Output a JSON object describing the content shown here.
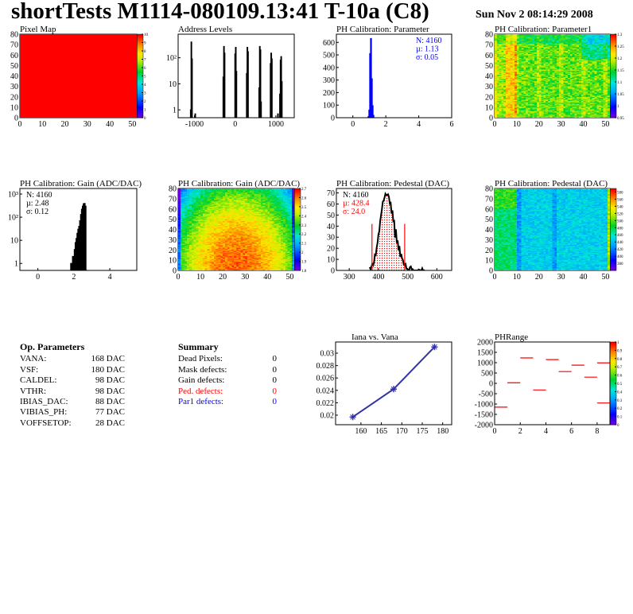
{
  "header": {
    "title": "shortTests M1114-080109.13:41 T-10a (C8)",
    "date": "Sun Nov  2 08:14:29 2008"
  },
  "colors": {
    "hist": "#000000",
    "blue": "#0000ff",
    "red": "#ff0000",
    "graph": "#3333aa"
  },
  "chart_data": [
    {
      "id": "pixel-map",
      "type": "heatmap",
      "title": "Pixel Map",
      "xlim": [
        0,
        52
      ],
      "ylim": [
        0,
        80
      ],
      "xticks": [
        0,
        10,
        20,
        30,
        40,
        50
      ],
      "yticks": [
        0,
        10,
        20,
        30,
        40,
        50,
        60,
        70,
        80
      ],
      "zlim": [
        0,
        10
      ],
      "zticks": [
        0,
        1,
        2,
        3,
        4,
        5,
        6,
        7,
        8,
        9,
        10
      ],
      "pattern": "uniform",
      "zvalue": 10
    },
    {
      "id": "address-levels",
      "type": "bar",
      "title": "Address Levels",
      "xlim": [
        -1400,
        1450
      ],
      "ylog": true,
      "ylim": [
        0.5,
        800
      ],
      "xticks": [
        -1000,
        0,
        1000
      ],
      "yticks": [
        {
          "v": 1,
          "l": "1"
        },
        {
          "v": 10,
          "l": "10"
        },
        {
          "v": 100,
          "l": "10²"
        }
      ],
      "bins": [
        [
          -1090,
          1
        ],
        [
          -1075,
          400
        ],
        [
          -1060,
          90
        ],
        [
          -980,
          0.7
        ],
        [
          -290,
          18
        ],
        [
          -275,
          270
        ],
        [
          -260,
          150
        ],
        [
          0,
          140
        ],
        [
          15,
          250
        ],
        [
          30,
          30
        ],
        [
          285,
          25
        ],
        [
          300,
          250
        ],
        [
          315,
          170
        ],
        [
          590,
          7
        ],
        [
          605,
          270
        ],
        [
          620,
          200
        ],
        [
          635,
          2
        ],
        [
          870,
          60
        ],
        [
          885,
          150
        ],
        [
          900,
          90
        ],
        [
          1050,
          0.7
        ],
        [
          1100,
          4
        ],
        [
          1115,
          80
        ],
        [
          1130,
          110
        ],
        [
          1145,
          12
        ]
      ],
      "binwidth": 15
    },
    {
      "id": "ph-param",
      "type": "bar",
      "title": "PH Calibration: Parameter",
      "xlim": [
        -1,
        6
      ],
      "ylim": [
        0,
        665
      ],
      "xticks": [
        0,
        2,
        4,
        6
      ],
      "yticks": [
        0,
        100,
        200,
        300,
        400,
        500,
        600
      ],
      "bins": [
        [
          0.95,
          8
        ],
        [
          1.0,
          60
        ],
        [
          1.05,
          510
        ],
        [
          1.1,
          630
        ],
        [
          1.15,
          310
        ],
        [
          1.2,
          95
        ],
        [
          1.25,
          18
        ]
      ],
      "binwidth": 0.05,
      "stats": [
        "N: 4160",
        "µ: 1.13",
        "σ: 0.05"
      ],
      "stats_color": "blue"
    },
    {
      "id": "ph-param1",
      "type": "heatmap",
      "title": "PH Calibration: Parameter1",
      "xlim": [
        0,
        52
      ],
      "ylim": [
        0,
        80
      ],
      "xticks": [
        0,
        10,
        20,
        30,
        40,
        50
      ],
      "yticks": [
        0,
        10,
        20,
        30,
        40,
        50,
        60,
        70,
        80
      ],
      "zlim": [
        0.95,
        1.3
      ],
      "zticks": [
        0.95,
        1,
        1.05,
        1.1,
        1.15,
        1.2,
        1.25,
        1.3
      ],
      "pattern": "param1"
    },
    {
      "id": "gain-hist",
      "type": "bar",
      "title": "PH Calibration: Gain (ADC/DAC)",
      "xlim": [
        -1,
        5.5
      ],
      "ylog": true,
      "ylim": [
        0.5,
        1740
      ],
      "xticks": [
        0,
        2,
        4
      ],
      "yticks": [
        {
          "v": 1,
          "l": "1"
        },
        {
          "v": 10,
          "l": "10"
        },
        {
          "v": 100,
          "l": "10²"
        },
        {
          "v": 1000,
          "l": "10³"
        }
      ],
      "bins": [
        [
          1.85,
          1
        ],
        [
          1.95,
          2
        ],
        [
          2.0,
          1
        ],
        [
          2.05,
          4
        ],
        [
          2.1,
          8
        ],
        [
          2.15,
          12
        ],
        [
          2.2,
          20
        ],
        [
          2.25,
          30
        ],
        [
          2.3,
          40
        ],
        [
          2.35,
          70
        ],
        [
          2.4,
          130
        ],
        [
          2.45,
          220
        ],
        [
          2.5,
          300
        ],
        [
          2.55,
          380
        ],
        [
          2.6,
          390
        ],
        [
          2.65,
          300
        ],
        [
          2.7,
          0.5
        ]
      ],
      "binwidth": 0.05,
      "stats": [
        "N: 4160",
        "µ: 2.48",
        "σ: 0.12"
      ],
      "stats_color": "black"
    },
    {
      "id": "gain-map",
      "type": "heatmap",
      "title": "PH Calibration: Gain (ADC/DAC)",
      "xlim": [
        0,
        52
      ],
      "ylim": [
        0,
        80
      ],
      "xticks": [
        0,
        10,
        20,
        30,
        40,
        50
      ],
      "yticks": [
        0,
        10,
        20,
        30,
        40,
        50,
        60,
        70,
        80
      ],
      "zlim": [
        1.8,
        2.7
      ],
      "zticks": [
        1.8,
        1.9,
        2,
        2.1,
        2.2,
        2.3,
        2.4,
        2.5,
        2.6,
        2.7
      ],
      "pattern": "gain"
    },
    {
      "id": "pedestal-hist",
      "type": "bar",
      "title": "PH Calibration: Pedestal (DAC)",
      "xlim": [
        256,
        651
      ],
      "ylim": [
        0,
        74
      ],
      "xticks": [
        300,
        400,
        500,
        600
      ],
      "yticks": [
        0,
        10,
        20,
        30,
        40,
        50,
        60,
        70
      ],
      "mean": 428.4,
      "sigma": 24.0,
      "cuts": [
        378,
        490
      ],
      "cut_height": 42,
      "stats": [
        "N: 4160",
        "µ: 428.4",
        "σ: 24.0"
      ],
      "stats_colors": [
        "black",
        "red",
        "red"
      ]
    },
    {
      "id": "pedestal-map",
      "type": "heatmap",
      "title": "PH Calibration: Pedestal (DAC)",
      "xlim": [
        0,
        52
      ],
      "ylim": [
        0,
        80
      ],
      "xticks": [
        0,
        10,
        20,
        30,
        40,
        50
      ],
      "yticks": [
        0,
        10,
        20,
        30,
        40,
        50,
        60,
        70,
        80
      ],
      "zlim": [
        360,
        590
      ],
      "zticks": [
        380,
        400,
        420,
        440,
        460,
        480,
        500,
        520,
        540,
        560,
        580
      ],
      "pattern": "pedestal"
    },
    {
      "id": "iana-vana",
      "type": "line",
      "title": "Iana vs. Vana",
      "xlim": [
        153.8,
        182.2
      ],
      "ylim": [
        0.01846,
        0.0318
      ],
      "xticks": [
        160,
        165,
        170,
        175,
        180
      ],
      "yticks": [
        0.02,
        0.022,
        0.024,
        0.026,
        0.028,
        0.03
      ],
      "x": [
        158,
        168,
        178
      ],
      "y": [
        0.0197,
        0.0242,
        0.031
      ]
    },
    {
      "id": "phrange",
      "type": "heatmap",
      "title": "PHRange",
      "xlim": [
        0,
        9
      ],
      "ylim": [
        -2000,
        2000
      ],
      "xticks": [
        0,
        2,
        4,
        6,
        8
      ],
      "yticks": [
        -2000,
        -1500,
        -1000,
        -500,
        0,
        500,
        1000,
        1500,
        2000
      ],
      "zlim": [
        0,
        1
      ],
      "zticks": [
        0,
        0.1,
        0.2,
        0.3,
        0.4,
        0.5,
        0.6,
        0.7,
        0.8,
        0.9,
        1
      ],
      "segments": [
        [
          0,
          -1150
        ],
        [
          1,
          30
        ],
        [
          2,
          1230
        ],
        [
          3,
          -320
        ],
        [
          4,
          1150
        ],
        [
          5,
          570
        ],
        [
          6,
          880
        ],
        [
          7,
          300
        ],
        [
          8,
          990
        ],
        [
          8,
          -950
        ]
      ]
    }
  ],
  "op_parameters": {
    "title": "Op. Parameters",
    "rows": [
      {
        "name": "VANA:",
        "value": "168 DAC"
      },
      {
        "name": "VSF:",
        "value": "180 DAC"
      },
      {
        "name": "CALDEL:",
        "value": "98 DAC"
      },
      {
        "name": "VTHR:",
        "value": "98 DAC"
      },
      {
        "name": "IBIAS_DAC:",
        "value": "88 DAC"
      },
      {
        "name": "VIBIAS_PH:",
        "value": "77 DAC"
      },
      {
        "name": "VOFFSETOP:",
        "value": "28 DAC"
      }
    ]
  },
  "summary": {
    "title": "Summary",
    "rows": [
      {
        "name": "Dead Pixels:",
        "value": "0",
        "color": "#000000"
      },
      {
        "name": "Mask defects:",
        "value": "0",
        "color": "#000000"
      },
      {
        "name": "Gain defects:",
        "value": "0",
        "color": "#000000"
      },
      {
        "name": "Ped. defects:",
        "value": "0",
        "color": "#ff0000"
      },
      {
        "name": "Par1 defects:",
        "value": "0",
        "color": "#0000ff"
      }
    ]
  }
}
